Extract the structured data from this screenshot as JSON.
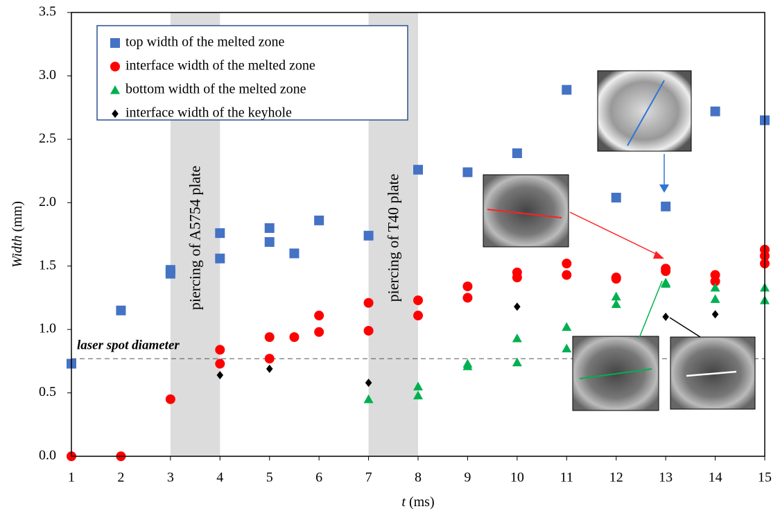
{
  "chart_data": {
    "type": "scatter",
    "x_label_var": "t",
    "x_label_unit": "(ms)",
    "y_label_var": "Width",
    "y_label_unit": "(mm)",
    "xlim": [
      1,
      15
    ],
    "xticks": [
      1,
      2,
      3,
      4,
      5,
      6,
      7,
      8,
      9,
      10,
      11,
      12,
      13,
      14,
      15
    ],
    "ylim": [
      0,
      3.5
    ],
    "yticks": [
      {
        "value": 0,
        "label": "0.0"
      },
      0.5,
      {
        "value": 1,
        "label": "1.0"
      },
      1.5,
      {
        "value": 2,
        "label": "2.0"
      },
      2.5,
      {
        "value": 3,
        "label": "3.0"
      },
      3.5
    ],
    "legend": "top-left",
    "series": [
      {
        "name": "top width of the melted zone",
        "color": "#4472c4",
        "marker": "square",
        "x": [
          1,
          2,
          3,
          3,
          4,
          4,
          5,
          5,
          5.5,
          6,
          7,
          8,
          9,
          10,
          11,
          12,
          13,
          14,
          15
        ],
        "values": [
          0.73,
          1.15,
          1.47,
          1.44,
          1.76,
          1.56,
          1.8,
          1.69,
          1.6,
          1.86,
          1.74,
          2.26,
          2.24,
          2.39,
          2.89,
          2.04,
          1.97,
          2.72,
          2.65
        ]
      },
      {
        "name": "interface width of the melted zone",
        "color": "#ff0000",
        "marker": "circle",
        "x": [
          1,
          2,
          3,
          4,
          4,
          5,
          5,
          5.5,
          6,
          6,
          7,
          7,
          8,
          8,
          9,
          9,
          10,
          10,
          11,
          11,
          12,
          12,
          13,
          13,
          14,
          14,
          15,
          15,
          15
        ],
        "values": [
          0,
          0,
          0.45,
          0.84,
          0.73,
          0.94,
          0.77,
          0.94,
          1.11,
          0.98,
          1.21,
          0.99,
          1.23,
          1.11,
          1.34,
          1.25,
          1.45,
          1.41,
          1.52,
          1.43,
          1.41,
          1.4,
          1.48,
          1.46,
          1.43,
          1.38,
          1.63,
          1.58,
          1.52
        ]
      },
      {
        "name": "bottom width of the melted zone",
        "color": "#00b050",
        "marker": "triangle",
        "x": [
          7,
          8,
          8,
          9,
          9,
          10,
          10,
          11,
          11,
          12,
          12,
          13,
          13,
          14,
          14,
          15,
          15
        ],
        "values": [
          0.45,
          0.55,
          0.48,
          0.73,
          0.71,
          0.93,
          0.74,
          1.02,
          0.85,
          1.26,
          1.2,
          1.37,
          1.36,
          1.33,
          1.24,
          1.33,
          1.23
        ]
      },
      {
        "name": "interface width of the keyhole",
        "color": "#000000",
        "marker": "diamond",
        "x": [
          4,
          5,
          7,
          10,
          13,
          14
        ],
        "values": [
          0.64,
          0.69,
          0.58,
          1.18,
          1.1,
          1.12
        ]
      }
    ],
    "bands": [
      {
        "x": [
          3,
          4
        ],
        "label": "piercing of A5754 plate"
      },
      {
        "x": [
          7,
          8
        ],
        "label": "piercing of T40 plate"
      }
    ],
    "reference_line": {
      "value": 0.77,
      "label": "laser spot diameter"
    }
  }
}
